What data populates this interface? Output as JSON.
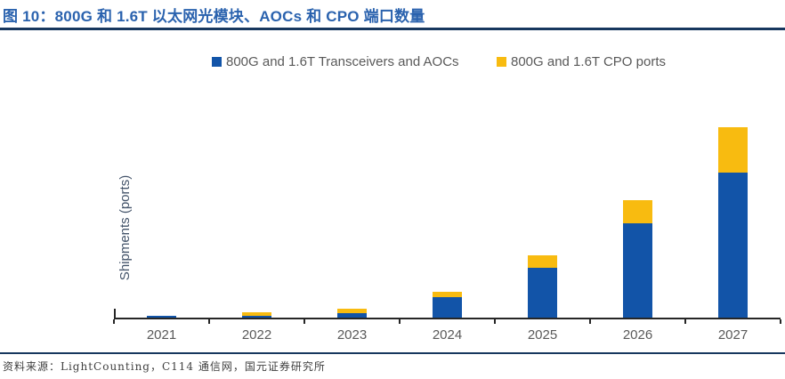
{
  "title": {
    "text": "图 10：800G 和 1.6T 以太网光模块、AOCs 和 CPO 端口数量"
  },
  "legend": [
    {
      "label": "800G and 1.6T Transceivers and AOCs",
      "color": "#1254A8"
    },
    {
      "label": "800G and 1.6T CPO ports",
      "color": "#F8BB10"
    }
  ],
  "chart_data": {
    "type": "bar",
    "stacked": true,
    "title": "800G 和 1.6T 以太网光模块、AOCs 和 CPO 端口数量",
    "categories": [
      "2021",
      "2022",
      "2023",
      "2024",
      "2025",
      "2026",
      "2027"
    ],
    "series": [
      {
        "name": "800G and 1.6T Transceivers and AOCs",
        "color": "#1254A8",
        "values": [
          2,
          2,
          5.5,
          23.5,
          56.5,
          106,
          163
        ]
      },
      {
        "name": "800G and 1.6T CPO ports",
        "color": "#F8BB10",
        "values": [
          0,
          4,
          4.5,
          6,
          13.5,
          26.5,
          51
        ]
      }
    ],
    "xlabel": "",
    "ylabel": "Shipments (ports)",
    "ylim": [
      0,
      230
    ],
    "y_ticks_shown": false,
    "grid": false,
    "legend_position": "top"
  },
  "footer": {
    "source": "资料来源：LightCounting，C114 通信网，国元证券研究所"
  }
}
